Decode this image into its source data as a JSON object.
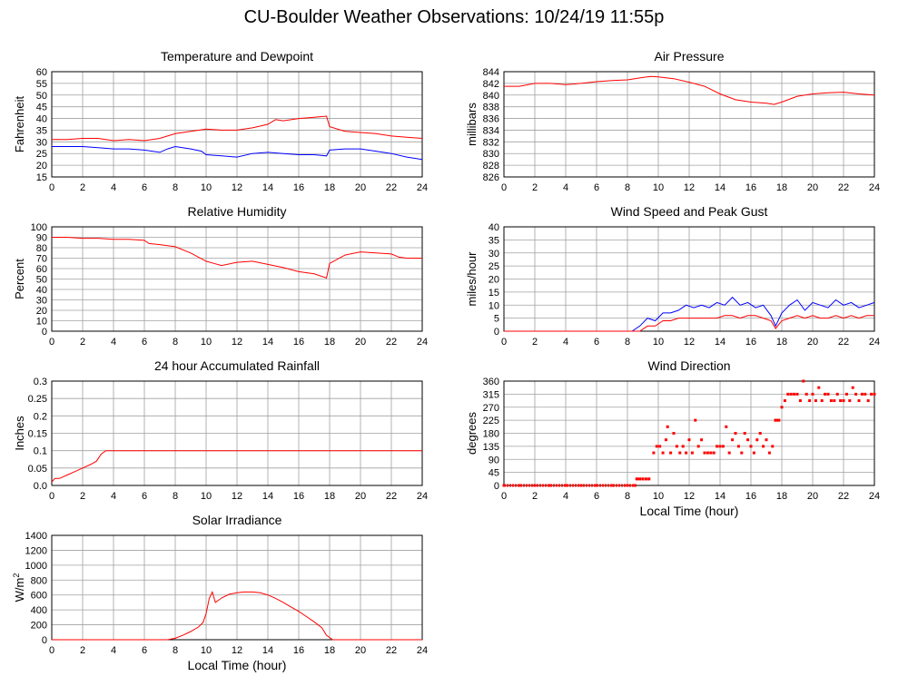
{
  "page_title": "CU-Boulder Weather Observations: 10/24/19 11:55p",
  "colors": {
    "red": "#ff0000",
    "blue": "#0000ff",
    "grid": "#a0a0a0",
    "axis": "#000000"
  },
  "chart_data": [
    {
      "id": "temperature",
      "type": "line",
      "title": "Temperature and Dewpoint",
      "ylabel": "Fahrenheit",
      "xlabel": "",
      "xlim": [
        0,
        24
      ],
      "ylim": [
        15,
        60
      ],
      "xticks": [
        0,
        2,
        4,
        6,
        8,
        10,
        12,
        14,
        16,
        18,
        20,
        22,
        24
      ],
      "yticks": [
        15,
        20,
        25,
        30,
        35,
        40,
        45,
        50,
        55,
        60
      ],
      "grid": true,
      "series": [
        {
          "color": "#ff0000",
          "x": [
            0,
            1,
            2,
            3,
            4,
            5,
            6,
            7,
            8,
            9,
            10,
            11,
            12,
            13,
            14,
            14.5,
            15,
            16,
            17,
            17.8,
            18,
            19,
            20,
            21,
            22,
            23,
            24
          ],
          "y": [
            31,
            31,
            31.5,
            31.5,
            30.5,
            31,
            30.5,
            31.5,
            33.5,
            34.5,
            35.5,
            35,
            35,
            36,
            37.5,
            39.5,
            39,
            40,
            40.5,
            41,
            36.5,
            34.5,
            34,
            33.5,
            32.5,
            32,
            31.5
          ]
        },
        {
          "color": "#0000ff",
          "x": [
            0,
            1,
            2,
            3,
            4,
            5,
            6,
            7,
            7.5,
            8,
            9,
            9.7,
            10,
            11,
            12,
            13,
            14,
            15,
            16,
            17,
            17.8,
            18,
            19,
            20,
            21,
            22,
            23,
            24
          ],
          "y": [
            28,
            28,
            28,
            27.5,
            27,
            27,
            26.5,
            25.5,
            27,
            28,
            27,
            26,
            24.5,
            24,
            23.5,
            25,
            25.5,
            25,
            24.5,
            24.5,
            24,
            26.5,
            27,
            27,
            26,
            25,
            23.5,
            22.5
          ]
        }
      ]
    },
    {
      "id": "pressure",
      "type": "line",
      "title": "Air Pressure",
      "ylabel": "millibars",
      "xlabel": "",
      "xlim": [
        0,
        24
      ],
      "ylim": [
        826,
        844
      ],
      "xticks": [
        0,
        2,
        4,
        6,
        8,
        10,
        12,
        14,
        16,
        18,
        20,
        22,
        24
      ],
      "yticks": [
        826,
        828,
        830,
        832,
        834,
        836,
        838,
        840,
        842,
        844
      ],
      "grid": true,
      "series": [
        {
          "color": "#ff0000",
          "x": [
            0,
            1,
            2,
            3,
            4,
            5,
            6,
            7,
            8,
            9,
            9.5,
            10,
            11,
            12,
            13,
            14,
            15,
            16,
            17,
            17.5,
            18,
            19,
            20,
            21,
            22,
            23,
            24
          ],
          "y": [
            841.5,
            841.5,
            842,
            842,
            841.8,
            842,
            842.3,
            842.5,
            842.6,
            843,
            843.2,
            843.1,
            842.8,
            842.2,
            841.5,
            840.2,
            839.2,
            838.8,
            838.6,
            838.4,
            838.8,
            839.8,
            840.2,
            840.4,
            840.5,
            840.2,
            840
          ]
        }
      ]
    },
    {
      "id": "humidity",
      "type": "line",
      "title": "Relative Humidity",
      "ylabel": "Percent",
      "xlabel": "",
      "xlim": [
        0,
        24
      ],
      "ylim": [
        0,
        100
      ],
      "xticks": [
        0,
        2,
        4,
        6,
        8,
        10,
        12,
        14,
        16,
        18,
        20,
        22,
        24
      ],
      "yticks": [
        0,
        10,
        20,
        30,
        40,
        50,
        60,
        70,
        80,
        90,
        100
      ],
      "grid": true,
      "series": [
        {
          "color": "#ff0000",
          "x": [
            0,
            1,
            2,
            3,
            4,
            5,
            6,
            6.3,
            7,
            8,
            9,
            10,
            10.5,
            11,
            12,
            13,
            14,
            15,
            16,
            17,
            17.8,
            18,
            19,
            20,
            21,
            22,
            22.5,
            23,
            24
          ],
          "y": [
            90,
            90,
            89,
            89,
            88,
            88,
            87,
            84,
            83,
            81,
            75,
            67,
            65,
            63,
            66,
            67,
            64,
            61,
            57,
            55,
            51,
            65,
            73,
            76,
            75,
            74,
            71,
            70,
            70
          ]
        }
      ]
    },
    {
      "id": "wind",
      "type": "line",
      "title": "Wind Speed and Peak Gust",
      "ylabel": "miles/hour",
      "xlabel": "",
      "xlim": [
        0,
        24
      ],
      "ylim": [
        0,
        40
      ],
      "xticks": [
        0,
        2,
        4,
        6,
        8,
        10,
        12,
        14,
        16,
        18,
        20,
        22,
        24
      ],
      "yticks": [
        0,
        5,
        10,
        15,
        20,
        25,
        30,
        35,
        40
      ],
      "grid": true,
      "series": [
        {
          "color": "#0000ff",
          "x": [
            0,
            8.3,
            8.8,
            9.3,
            9.8,
            10.3,
            10.8,
            11.3,
            11.8,
            12.3,
            12.8,
            13.3,
            13.8,
            14.3,
            14.8,
            15.3,
            15.8,
            16.3,
            16.8,
            17.3,
            17.6,
            18,
            18.5,
            19,
            19.5,
            20,
            20.5,
            21,
            21.5,
            22,
            22.5,
            23,
            23.5,
            24
          ],
          "y": [
            0,
            0,
            2,
            5,
            4,
            7,
            7,
            8,
            10,
            9,
            10,
            9,
            11,
            10,
            13,
            10,
            11,
            9,
            10,
            6,
            2,
            7,
            10,
            12,
            8,
            11,
            10,
            9,
            12,
            10,
            11,
            9,
            10,
            11
          ]
        },
        {
          "color": "#ff0000",
          "x": [
            0,
            8.8,
            9.3,
            9.8,
            10.3,
            10.8,
            11.3,
            11.8,
            12.3,
            12.8,
            13.3,
            13.8,
            14.3,
            14.8,
            15.3,
            15.8,
            16.3,
            16.8,
            17.3,
            17.6,
            18,
            18.5,
            19,
            19.5,
            20,
            20.5,
            21,
            21.5,
            22,
            22.5,
            23,
            23.5,
            24
          ],
          "y": [
            0,
            0,
            2,
            2,
            4,
            4,
            5,
            5,
            5,
            5,
            5,
            5,
            6,
            6,
            5,
            6,
            6,
            5,
            4,
            1,
            4,
            5,
            6,
            5,
            6,
            5,
            5,
            6,
            5,
            6,
            5,
            6,
            6
          ]
        }
      ]
    },
    {
      "id": "rainfall",
      "type": "line",
      "title": "24 hour Accumulated Rainfall",
      "ylabel": "Inches",
      "xlabel": "",
      "xlim": [
        0,
        24
      ],
      "ylim": [
        0,
        0.3
      ],
      "xticks": [
        0,
        2,
        4,
        6,
        8,
        10,
        12,
        14,
        16,
        18,
        20,
        22,
        24
      ],
      "yticks": [
        0.0,
        0.05,
        0.1,
        0.15,
        0.2,
        0.25,
        0.3
      ],
      "ytick_labels": [
        "0.0",
        "0.05",
        "0.1",
        "0.15",
        "0.2",
        "0.25",
        "0.3"
      ],
      "grid": true,
      "series": [
        {
          "color": "#ff0000",
          "x": [
            0,
            0.2,
            0.5,
            1.0,
            1.5,
            2.0,
            2.5,
            2.9,
            3.2,
            3.5,
            4,
            24
          ],
          "y": [
            0.01,
            0.02,
            0.02,
            0.03,
            0.04,
            0.05,
            0.06,
            0.07,
            0.09,
            0.1,
            0.1,
            0.1
          ]
        }
      ]
    },
    {
      "id": "direction",
      "type": "scatter",
      "title": "Wind Direction",
      "ylabel": "degrees",
      "xlabel": "Local Time (hour)",
      "xlim": [
        0,
        24
      ],
      "ylim": [
        0,
        360
      ],
      "xticks": [
        0,
        2,
        4,
        6,
        8,
        10,
        12,
        14,
        16,
        18,
        20,
        22,
        24
      ],
      "yticks": [
        0,
        45,
        90,
        135,
        180,
        225,
        270,
        315,
        360
      ],
      "grid": true,
      "series": [
        {
          "color": "#ff0000",
          "points": [
            [
              0,
              0
            ],
            [
              1,
              0
            ],
            [
              2,
              0
            ],
            [
              3,
              0
            ],
            [
              4,
              0
            ],
            [
              5,
              0
            ],
            [
              6,
              0
            ],
            [
              7,
              0
            ],
            [
              8,
              0
            ],
            [
              8.5,
              0
            ],
            [
              8.6,
              22.5
            ],
            [
              8.8,
              22.5
            ],
            [
              9.0,
              22.5
            ],
            [
              9.2,
              22.5
            ],
            [
              9.4,
              22.5
            ],
            [
              9.7,
              112.5
            ],
            [
              9.9,
              135
            ],
            [
              10.1,
              135
            ],
            [
              10.3,
              112.5
            ],
            [
              10.5,
              157.5
            ],
            [
              10.6,
              202.5
            ],
            [
              10.8,
              112.5
            ],
            [
              11.0,
              180
            ],
            [
              11.2,
              135
            ],
            [
              11.4,
              112.5
            ],
            [
              11.6,
              135
            ],
            [
              11.8,
              112.5
            ],
            [
              12.0,
              157.5
            ],
            [
              12.2,
              112.5
            ],
            [
              12.4,
              225
            ],
            [
              12.6,
              135
            ],
            [
              12.8,
              157.5
            ],
            [
              13.0,
              112.5
            ],
            [
              13.2,
              112.5
            ],
            [
              13.4,
              112.5
            ],
            [
              13.6,
              112.5
            ],
            [
              13.8,
              135
            ],
            [
              14.0,
              135
            ],
            [
              14.2,
              135
            ],
            [
              14.4,
              202.5
            ],
            [
              14.6,
              112.5
            ],
            [
              14.8,
              157.5
            ],
            [
              15.0,
              180
            ],
            [
              15.2,
              135
            ],
            [
              15.4,
              112.5
            ],
            [
              15.6,
              180
            ],
            [
              15.8,
              157.5
            ],
            [
              16.0,
              135
            ],
            [
              16.2,
              112.5
            ],
            [
              16.4,
              157.5
            ],
            [
              16.6,
              180
            ],
            [
              16.8,
              135
            ],
            [
              17.0,
              157.5
            ],
            [
              17.2,
              112.5
            ],
            [
              17.4,
              135
            ],
            [
              17.6,
              225
            ],
            [
              17.8,
              225
            ],
            [
              18.0,
              270
            ],
            [
              18.2,
              292.5
            ],
            [
              18.4,
              315
            ],
            [
              18.6,
              315
            ],
            [
              18.8,
              315
            ],
            [
              19.0,
              315
            ],
            [
              19.2,
              292.5
            ],
            [
              19.4,
              360
            ],
            [
              19.6,
              315
            ],
            [
              19.8,
              292.5
            ],
            [
              20.0,
              315
            ],
            [
              20.2,
              292.5
            ],
            [
              20.4,
              337.5
            ],
            [
              20.6,
              292.5
            ],
            [
              20.8,
              315
            ],
            [
              21.0,
              315
            ],
            [
              21.2,
              292.5
            ],
            [
              21.4,
              292.5
            ],
            [
              21.6,
              315
            ],
            [
              21.8,
              292.5
            ],
            [
              22.0,
              292.5
            ],
            [
              22.2,
              315
            ],
            [
              22.4,
              292.5
            ],
            [
              22.6,
              337.5
            ],
            [
              22.8,
              315
            ],
            [
              23.0,
              292.5
            ],
            [
              23.2,
              315
            ],
            [
              23.4,
              315
            ],
            [
              23.6,
              292.5
            ],
            [
              23.8,
              315
            ],
            [
              24.0,
              315
            ]
          ]
        }
      ]
    },
    {
      "id": "solar",
      "type": "line",
      "title": "Solar Irradiance",
      "ylabel": "W/m2",
      "xlabel": "Local Time (hour)",
      "xlim": [
        0,
        24
      ],
      "ylim": [
        0,
        1400
      ],
      "xticks": [
        0,
        2,
        4,
        6,
        8,
        10,
        12,
        14,
        16,
        18,
        20,
        22,
        24
      ],
      "yticks": [
        0,
        200,
        400,
        600,
        800,
        1000,
        1200,
        1400
      ],
      "grid": true,
      "series": [
        {
          "color": "#ff0000",
          "x": [
            0,
            7.5,
            8.0,
            8.5,
            9.0,
            9.5,
            9.8,
            10.0,
            10.2,
            10.4,
            10.6,
            11.0,
            11.5,
            12.0,
            12.5,
            13.0,
            13.5,
            14.0,
            14.5,
            15.0,
            15.5,
            16.0,
            16.5,
            17.0,
            17.5,
            17.8,
            18.2,
            24
          ],
          "y": [
            0,
            0,
            20,
            60,
            110,
            170,
            230,
            350,
            550,
            640,
            500,
            560,
            610,
            630,
            640,
            640,
            630,
            600,
            555,
            500,
            440,
            380,
            310,
            240,
            160,
            60,
            0,
            0
          ]
        }
      ]
    }
  ]
}
